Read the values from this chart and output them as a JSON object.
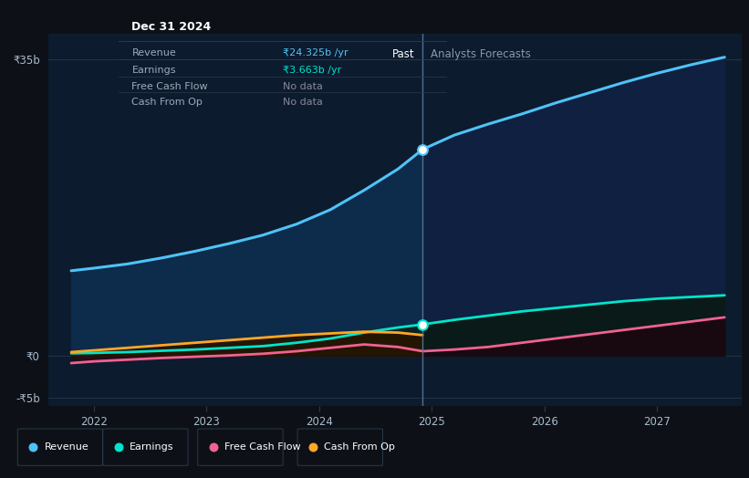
{
  "background_color": "#0d1117",
  "plot_bg_color": "#0d1b2e",
  "ylim": [
    -6,
    38
  ],
  "xlim": [
    2021.6,
    2027.75
  ],
  "divider_x": 2024.92,
  "past_label": "Past",
  "forecast_label": "Analysts Forecasts",
  "y_ticks_pos": [
    -5,
    0,
    35
  ],
  "y_tick_labels": [
    "-₹5b",
    "₹0",
    "₹35b"
  ],
  "x_ticks": [
    2022,
    2023,
    2024,
    2025,
    2026,
    2027
  ],
  "revenue": {
    "x_past": [
      2021.8,
      2022.0,
      2022.3,
      2022.6,
      2022.9,
      2023.2,
      2023.5,
      2023.8,
      2024.1,
      2024.4,
      2024.7,
      2024.92
    ],
    "y_past": [
      10.0,
      10.3,
      10.8,
      11.5,
      12.3,
      13.2,
      14.2,
      15.5,
      17.2,
      19.5,
      22.0,
      24.325
    ],
    "x_forecast": [
      2024.92,
      2025.2,
      2025.5,
      2025.8,
      2026.1,
      2026.4,
      2026.7,
      2027.0,
      2027.3,
      2027.6
    ],
    "y_forecast": [
      24.325,
      26.0,
      27.3,
      28.5,
      29.8,
      31.0,
      32.2,
      33.3,
      34.3,
      35.2
    ],
    "color": "#4fc3f7",
    "fill_color_past": "#0d2b4a",
    "fill_color_forecast": "#102040",
    "linewidth": 2.2
  },
  "earnings": {
    "x_past": [
      2021.8,
      2022.0,
      2022.3,
      2022.6,
      2022.9,
      2023.2,
      2023.5,
      2023.8,
      2024.1,
      2024.4,
      2024.7,
      2024.92
    ],
    "y_past": [
      0.25,
      0.3,
      0.4,
      0.55,
      0.7,
      0.9,
      1.1,
      1.5,
      2.0,
      2.7,
      3.3,
      3.663
    ],
    "x_forecast": [
      2024.92,
      2025.2,
      2025.5,
      2025.8,
      2026.1,
      2026.4,
      2026.7,
      2027.0,
      2027.3,
      2027.6
    ],
    "y_forecast": [
      3.663,
      4.2,
      4.7,
      5.2,
      5.6,
      6.0,
      6.4,
      6.7,
      6.9,
      7.1
    ],
    "color": "#00e5cc",
    "fill_color_past": "#0a2220",
    "fill_color_forecast": "#091a18",
    "linewidth": 2.0
  },
  "free_cash_flow": {
    "x_past": [
      2021.8,
      2022.0,
      2022.3,
      2022.6,
      2022.9,
      2023.2,
      2023.5,
      2023.8,
      2024.1,
      2024.4,
      2024.7,
      2024.92
    ],
    "y_past": [
      -0.9,
      -0.7,
      -0.5,
      -0.3,
      -0.15,
      0.0,
      0.2,
      0.5,
      0.9,
      1.3,
      1.0,
      0.5
    ],
    "x_forecast": [
      2024.92,
      2025.2,
      2025.5,
      2025.8,
      2026.1,
      2026.4,
      2026.7,
      2027.0,
      2027.3,
      2027.6
    ],
    "y_forecast": [
      0.5,
      0.7,
      1.0,
      1.5,
      2.0,
      2.5,
      3.0,
      3.5,
      4.0,
      4.5
    ],
    "color": "#f06292",
    "fill_color_past": "#250d18",
    "fill_color_forecast": "#1a0810",
    "linewidth": 2.0
  },
  "cash_from_op": {
    "x_past": [
      2021.8,
      2022.0,
      2022.3,
      2022.6,
      2022.9,
      2023.2,
      2023.5,
      2023.8,
      2024.1,
      2024.4,
      2024.7,
      2024.92
    ],
    "y_past": [
      0.4,
      0.6,
      0.9,
      1.2,
      1.5,
      1.8,
      2.1,
      2.4,
      2.6,
      2.8,
      2.7,
      2.4
    ],
    "x_forecast": [],
    "y_forecast": [],
    "color": "#ffa726",
    "fill_color_past": "#251500",
    "fill_color_forecast": "#251500",
    "linewidth": 2.0
  },
  "tooltip": {
    "date": "Dec 31 2024",
    "rows": [
      {
        "label": "Revenue",
        "value": "₹24.325b /yr",
        "value_color": "#4fc3f7"
      },
      {
        "label": "Earnings",
        "value": "₹3.663b /yr",
        "value_color": "#00e5cc"
      },
      {
        "label": "Free Cash Flow",
        "value": "No data",
        "value_color": "#888899"
      },
      {
        "label": "Cash From Op",
        "value": "No data",
        "value_color": "#888899"
      }
    ]
  },
  "legend_items": [
    {
      "label": "Revenue",
      "color": "#4fc3f7"
    },
    {
      "label": "Earnings",
      "color": "#00e5cc"
    },
    {
      "label": "Free Cash Flow",
      "color": "#f06292"
    },
    {
      "label": "Cash From Op",
      "color": "#ffa726"
    }
  ]
}
